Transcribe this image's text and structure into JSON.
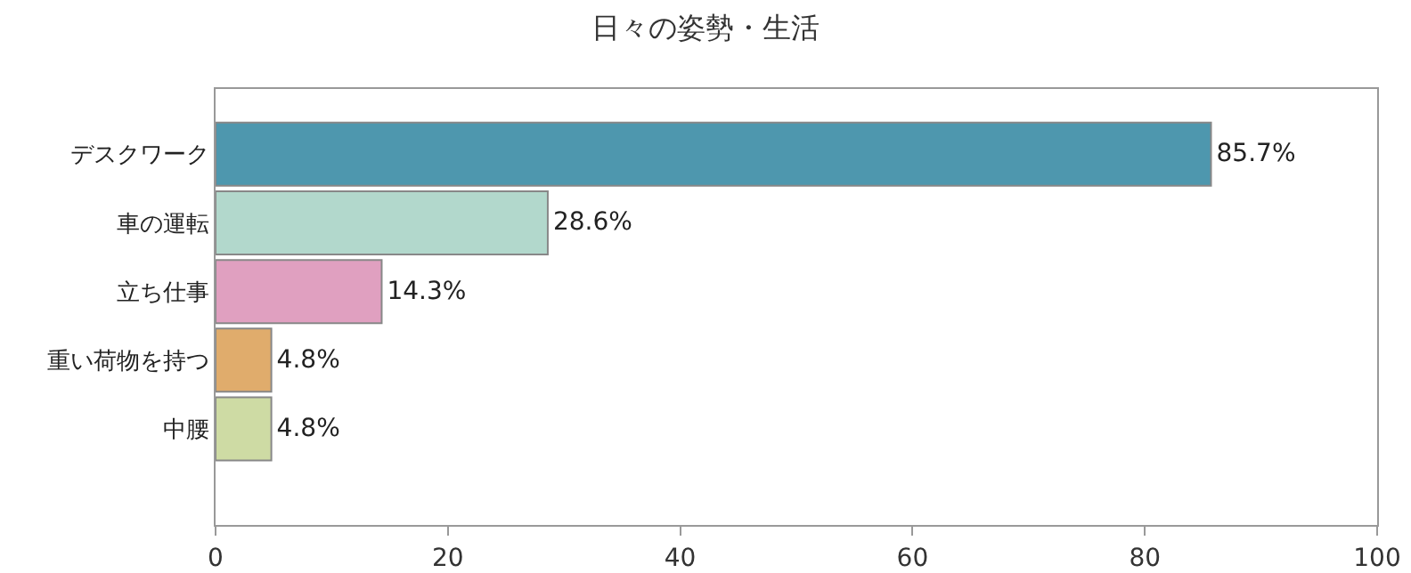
{
  "chart_data": {
    "type": "bar",
    "orientation": "horizontal",
    "title": "日々の姿勢・生活",
    "categories": [
      "デスクワーク",
      "車の運転",
      "立ち仕事",
      "重い荷物を持つ",
      "中腰"
    ],
    "values": [
      85.7,
      28.6,
      14.3,
      4.8,
      4.8
    ],
    "value_labels": [
      "85.7%",
      "28.6%",
      "14.3%",
      "4.8%",
      "4.8%"
    ],
    "colors": [
      "#4e97ae",
      "#b2d8cc",
      "#e0a0c0",
      "#e0ac6c",
      "#cedba4"
    ],
    "xlim": [
      0,
      100
    ],
    "xticks": [
      0,
      20,
      40,
      60,
      80,
      100
    ],
    "grid": false
  }
}
